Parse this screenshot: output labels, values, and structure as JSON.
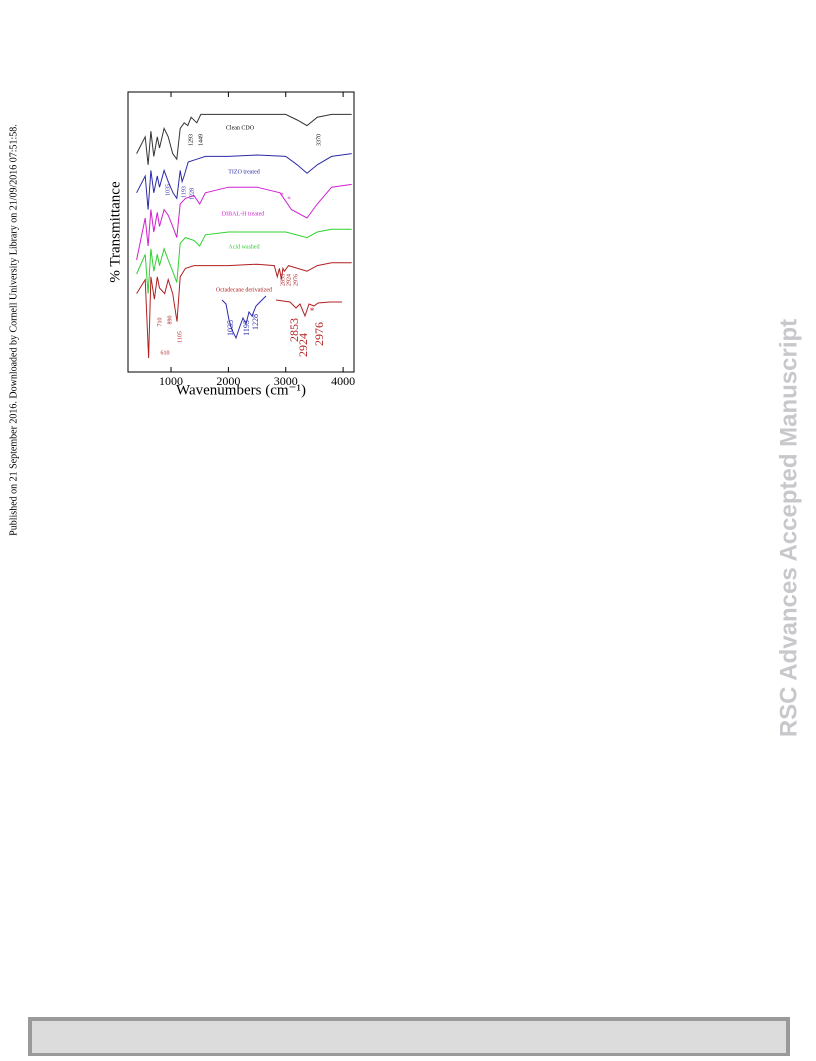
{
  "header": {
    "download_note": "Published on 21 September 2016. Downloaded by Cornell University Library on 21/09/2016 07:51:58."
  },
  "watermark": "RSC Advances Accepted Manuscript",
  "chart_data": {
    "type": "line",
    "x_label": "Wavenumbers (cm⁻¹)",
    "y_label": "% Transmittance",
    "xlim": [
      250,
      4190
    ],
    "xticks": [
      1000,
      2000,
      3000,
      4000
    ],
    "ylim": [
      0,
      100
    ],
    "series": [
      {
        "name": "Clean CDO",
        "color": "#333333",
        "x": [
          400,
          550,
          600,
          650,
          700,
          760,
          800,
          880,
          950,
          1030,
          1100,
          1160,
          1230,
          1293,
          1350,
          1449,
          1520,
          1700,
          2000,
          2500,
          3000,
          3200,
          3370,
          3550,
          3800,
          4150
        ],
        "values": [
          78,
          84,
          74,
          86,
          77,
          84,
          80,
          87,
          84,
          78,
          76,
          87,
          89,
          88,
          91,
          89,
          92,
          92,
          92,
          92,
          92,
          90,
          88,
          91,
          92,
          92
        ]
      },
      {
        "name": "TIZO treated",
        "color": "#2a2aa8",
        "x": [
          400,
          550,
          600,
          650,
          700,
          760,
          800,
          880,
          950,
          1035,
          1100,
          1160,
          1193,
          1228,
          1300,
          1450,
          1600,
          2000,
          2500,
          3000,
          3200,
          3370,
          3550,
          3800,
          4150
        ],
        "values": [
          64,
          70,
          58,
          72,
          64,
          70,
          66,
          72,
          68,
          64,
          62,
          72,
          68,
          70,
          75,
          76,
          77,
          77,
          77.5,
          77,
          74,
          71,
          74,
          77,
          78
        ]
      },
      {
        "name": "DIBAL-H treated",
        "color": "#d020d0",
        "x": [
          400,
          550,
          600,
          650,
          700,
          760,
          800,
          880,
          950,
          1030,
          1100,
          1160,
          1250,
          1400,
          1500,
          1600,
          2000,
          2500,
          2900,
          3100,
          3370,
          3550,
          3800,
          4150
        ],
        "values": [
          40,
          55,
          45,
          58,
          50,
          57,
          52,
          58,
          56,
          52,
          48,
          60,
          62,
          63,
          60,
          64,
          66,
          66,
          64,
          58,
          55,
          60,
          66,
          67
        ]
      },
      {
        "name": "Acid washed",
        "color": "#30d030",
        "x": [
          400,
          550,
          600,
          650,
          700,
          760,
          800,
          880,
          950,
          1030,
          1100,
          1160,
          1250,
          1400,
          1500,
          1600,
          2000,
          2500,
          3000,
          3370,
          3550,
          3800,
          4150
        ],
        "values": [
          35,
          42,
          28,
          44,
          36,
          42,
          38,
          44,
          40,
          36,
          32,
          46,
          48,
          47,
          45,
          49,
          50,
          50,
          50,
          48,
          50,
          51,
          51
        ]
      },
      {
        "name": "Octadecane derivatized",
        "color": "#b02020",
        "x": [
          400,
          550,
          610,
          650,
          710,
          760,
          800,
          890,
          950,
          1030,
          1105,
          1160,
          1250,
          1400,
          1600,
          2000,
          2500,
          2800,
          2853,
          2890,
          2924,
          2950,
          2976,
          3050,
          3370,
          3550,
          3800,
          4150
        ],
        "values": [
          28,
          33,
          5,
          34,
          26,
          34,
          30,
          28,
          33,
          28,
          18,
          34,
          37,
          38,
          38,
          38,
          38.5,
          38,
          34,
          37,
          33,
          37,
          36,
          38,
          36,
          38,
          39,
          39
        ]
      }
    ],
    "annotations": [
      "1293",
      "1449",
      "3370",
      "1035",
      "1193",
      "1228",
      "*",
      "*",
      "2853",
      "2924",
      "2976",
      "710",
      "890",
      "1105",
      "610",
      "1035",
      "1193",
      "1228",
      "2853",
      "2924",
      "2976",
      "*"
    ]
  }
}
